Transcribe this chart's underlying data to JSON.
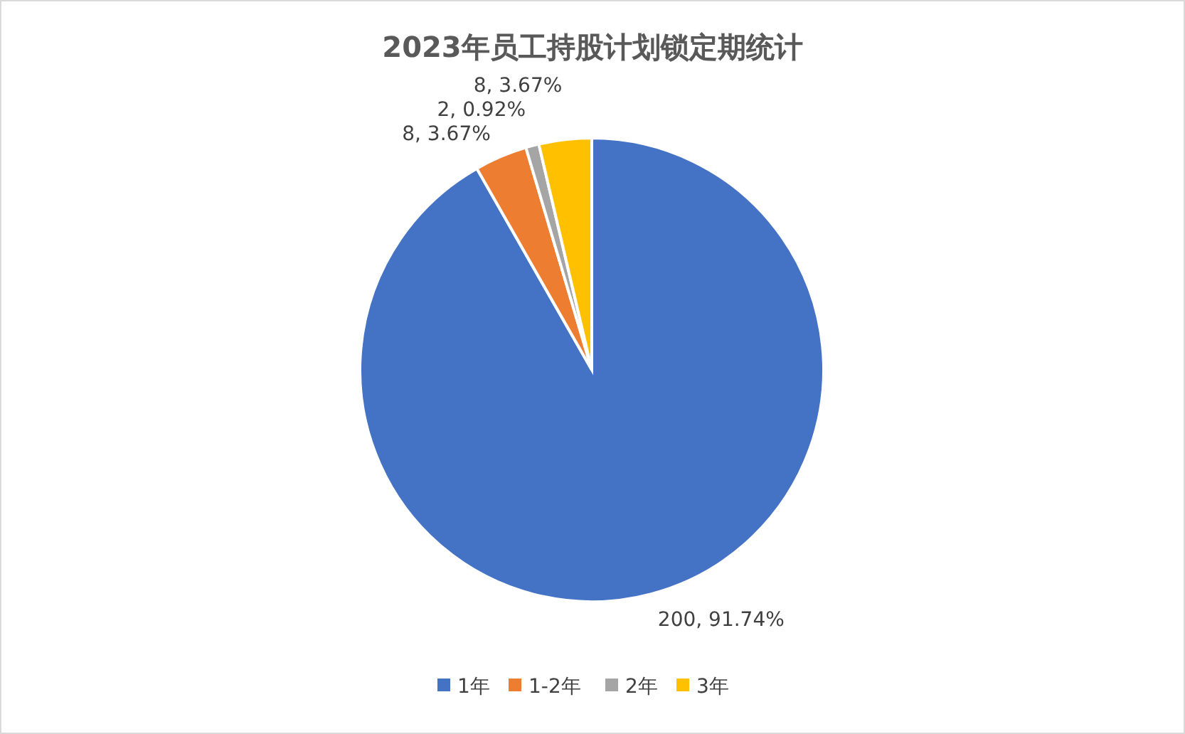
{
  "chart_data": {
    "type": "pie",
    "title": "2023年员工持股计划锁定期统计",
    "categories": [
      "1年",
      "1-2年",
      "2年",
      "3年"
    ],
    "values": [
      200,
      8,
      2,
      8
    ],
    "colors": [
      "#4472c4",
      "#ed7d31",
      "#a5a5a5",
      "#ffc000"
    ],
    "value_labels": [
      "200, 91.74%",
      "8, 3.67%",
      "2, 0.92%",
      "8, 3.67%"
    ],
    "legend": "bottom"
  }
}
